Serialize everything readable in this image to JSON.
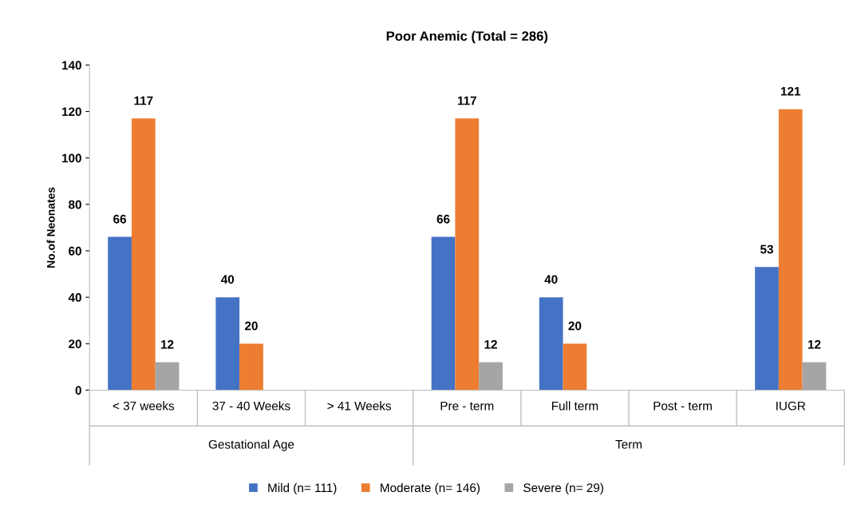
{
  "chart_data": {
    "type": "bar",
    "title": "Poor Anemic (Total = 286)",
    "ylabel": "No.of Neonates",
    "categories": [
      "< 37 weeks",
      "37 - 40 Weeks",
      "> 41 Weeks",
      "Pre - term",
      "Full term",
      "Post - term",
      "IUGR"
    ],
    "series": [
      {
        "name": "Mild (n= 111)",
        "color": "#4472c4",
        "values": [
          66,
          40,
          null,
          66,
          40,
          null,
          53
        ]
      },
      {
        "name": "Moderate (n= 146)",
        "color": "#ed7d31",
        "values": [
          117,
          20,
          null,
          117,
          20,
          null,
          121
        ]
      },
      {
        "name": "Severe (n= 29)",
        "color": "#a5a5a5",
        "values": [
          12,
          null,
          null,
          12,
          null,
          null,
          12
        ]
      }
    ],
    "annotations": [
      "Gestational Age",
      "Term"
    ],
    "ylim": [
      0,
      140
    ],
    "yticks": [
      0,
      20,
      40,
      60,
      80,
      100,
      120,
      140
    ],
    "data_labels": true,
    "grid": false,
    "legend": "bottom"
  }
}
